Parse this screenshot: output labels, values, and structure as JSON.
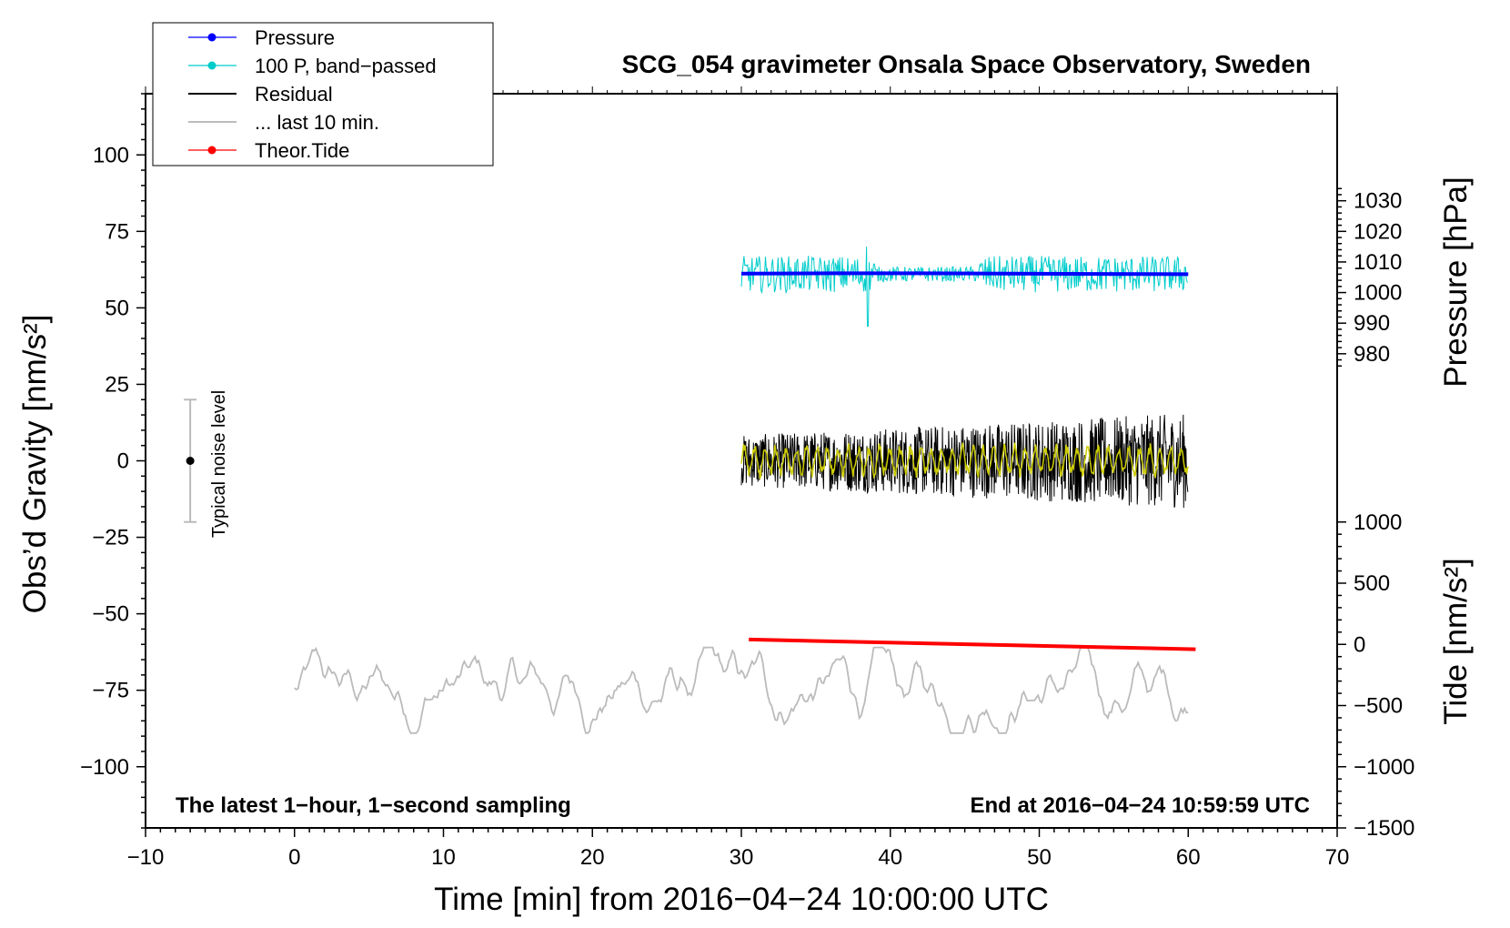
{
  "chart_data": {
    "type": "line",
    "title": "SCG_054 gravimeter Onsala Space Observatory, Sweden",
    "xlabel": "Time [min] from 2016−04−24 10:00:00 UTC",
    "ylabel_left": "Obs’d Gravity [nm/s²]",
    "ylabel_right_top": "Pressure [hPa]",
    "ylabel_right_bottom": "Tide [nm/s²]",
    "xlim": [
      -10,
      70
    ],
    "ylim_left": [
      -120,
      120
    ],
    "x_ticks": [
      "−10",
      "0",
      "10",
      "20",
      "30",
      "40",
      "50",
      "60",
      "70"
    ],
    "x_tick_values": [
      -10,
      0,
      10,
      20,
      30,
      40,
      50,
      60,
      70
    ],
    "y_ticks_left": [
      "100",
      "75",
      "50",
      "25",
      "0",
      "−25",
      "−50",
      "−75",
      "−100"
    ],
    "y_tick_values_left": [
      100,
      75,
      50,
      25,
      0,
      -25,
      -50,
      -75,
      -100
    ],
    "pressure_axis": {
      "ticks": [
        "1030",
        "1020",
        "1010",
        "1000",
        "990",
        "980"
      ],
      "values": [
        1030,
        1020,
        1010,
        1000,
        990,
        980
      ],
      "maps_to_gravity": {
        "value": 1000,
        "gravity": 55,
        "gravity_per_hPa": 1.0
      }
    },
    "tide_axis": {
      "ticks": [
        "1000",
        "500",
        "0",
        "−500",
        "−1000",
        "−1500"
      ],
      "values": [
        1000,
        500,
        0,
        -500,
        -1000,
        -1500
      ],
      "maps_to_gravity": {
        "value": 0,
        "gravity": -60,
        "gravity_per_unit": 0.04
      }
    },
    "legend": {
      "position": "top-left",
      "entries": [
        {
          "label": "Pressure",
          "color": "#0000ff",
          "marker": true
        },
        {
          "label": "100 P, band−passed",
          "color": "#00cccc",
          "marker": true
        },
        {
          "label": "Residual",
          "color": "#000000",
          "marker": false
        },
        {
          "label": "... last 10 min.",
          "color": "#bbbbbb",
          "marker": false
        },
        {
          "label": "Theor.Tide",
          "color": "#ff0000",
          "marker": true
        }
      ]
    },
    "annotations": {
      "bottom_left": "The latest 1−hour, 1−second sampling",
      "bottom_right": "End at 2016−04−24 10:59:59 UTC",
      "noise_label": "Typical noise level"
    },
    "noise_bar": {
      "x": -7,
      "center": 0,
      "low": -20,
      "high": 20
    },
    "series": [
      {
        "name": "Pressure",
        "color": "#0000ff",
        "unit": "hPa",
        "x_range": [
          30,
          60
        ],
        "values": [
          1006.2,
          1006.3,
          1006.3,
          1006.2,
          1006.1,
          1006.0
        ]
      },
      {
        "name": "100 P, band−passed",
        "color": "#00cccc",
        "unit": "nm/s²",
        "x_range": [
          30,
          60
        ],
        "center": 61,
        "amplitude": 6,
        "notes": "spike to 44 and 70 near x=38.5"
      },
      {
        "name": "Residual",
        "color": "#000000",
        "unit": "nm/s²",
        "x_range": [
          30,
          60
        ],
        "center": 0,
        "amplitude": 12
      },
      {
        "name": "Residual filtered",
        "color": "#cccc00",
        "unit": "nm/s²",
        "x_range": [
          30,
          60
        ],
        "center": 0,
        "amplitude": 5
      },
      {
        "name": "... last 10 min.",
        "color": "#bbbbbb",
        "unit": "nm/s²",
        "x_range": [
          0,
          60
        ],
        "center": -75,
        "amplitude": 14
      },
      {
        "name": "Theor.Tide",
        "color": "#ff0000",
        "unit": "nm/s²",
        "x": [
          30.5,
          60.5
        ],
        "values": [
          40,
          -40
        ]
      }
    ]
  }
}
